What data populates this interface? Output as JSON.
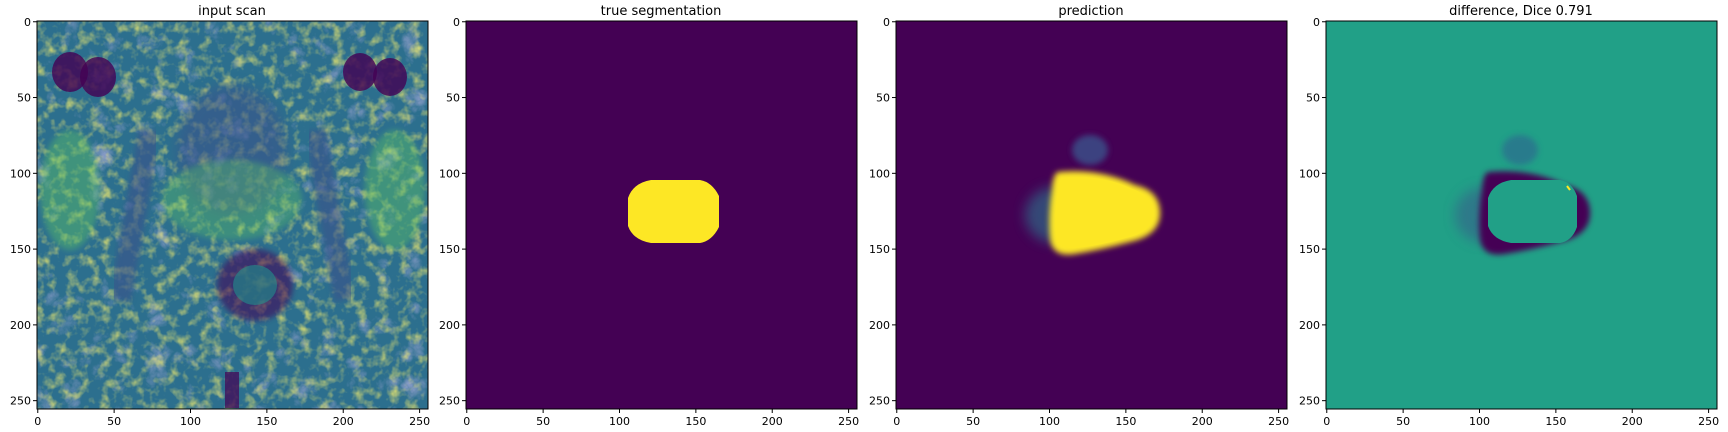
{
  "chart_data": [
    {
      "type": "heatmap",
      "title": "input scan",
      "image_shape": [
        256,
        256
      ],
      "colormap": "viridis",
      "content": "MRI pelvis scan (grayscale intensities shown in viridis)",
      "xlim": [
        0,
        255
      ],
      "ylim": [
        255,
        0
      ],
      "xticks": [
        0,
        50,
        100,
        150,
        200,
        250
      ],
      "yticks": [
        0,
        50,
        100,
        150,
        200,
        250
      ]
    },
    {
      "type": "heatmap",
      "title": "true segmentation",
      "image_shape": [
        256,
        256
      ],
      "colormap": "viridis",
      "mask": {
        "shape": "rounded-ellipse",
        "center": [
          133,
          125
        ],
        "radius": [
          30,
          21
        ],
        "value": 1,
        "background": 0
      },
      "xlim": [
        0,
        255
      ],
      "ylim": [
        255,
        0
      ],
      "xticks": [
        0,
        50,
        100,
        150,
        200,
        250
      ],
      "yticks": [
        0,
        50,
        100,
        150,
        200,
        250
      ]
    },
    {
      "type": "heatmap",
      "title": "prediction",
      "image_shape": [
        256,
        256
      ],
      "colormap": "viridis",
      "mask": {
        "shape": "irregular-blob",
        "center": [
          133,
          128
        ],
        "radius": [
          34,
          25
        ],
        "value": 1,
        "background": 0
      },
      "xlim": [
        0,
        255
      ],
      "ylim": [
        255,
        0
      ],
      "xticks": [
        0,
        50,
        100,
        150,
        200,
        250
      ],
      "yticks": [
        0,
        50,
        100,
        150,
        200,
        250
      ]
    },
    {
      "type": "heatmap",
      "title": "difference, Dice 0.791",
      "dice": 0.791,
      "image_shape": [
        256,
        256
      ],
      "colormap": "viridis",
      "content": "true segmentation minus prediction; zero background, negative ring where prediction exceeds truth",
      "xlim": [
        0,
        255
      ],
      "ylim": [
        255,
        0
      ],
      "xticks": [
        0,
        50,
        100,
        150,
        200,
        250
      ],
      "yticks": [
        0,
        50,
        100,
        150,
        200,
        250
      ]
    }
  ],
  "colors": {
    "viridis_low": "#440154",
    "viridis_mid": "#21918c",
    "viridis_diff_zero": "#21a087",
    "viridis_high": "#fde725",
    "viridis_midlow": "#3b528b",
    "viridis_midhigh": "#5ec962"
  }
}
